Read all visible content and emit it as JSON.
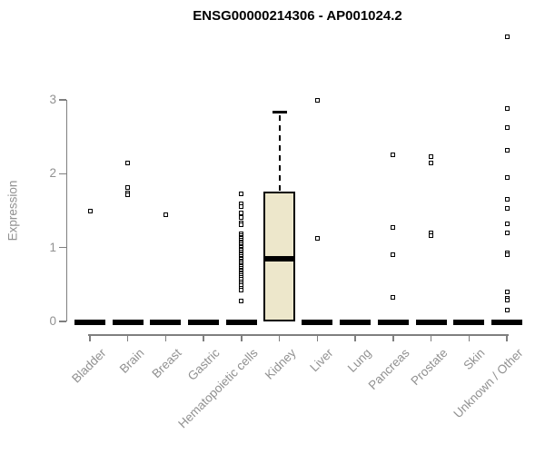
{
  "page": {
    "title": "ENSG00000214306 - AP001024.2"
  },
  "chart_data": {
    "type": "boxplot",
    "title": "ENSG00000214306 - AP001024.2",
    "ylabel": "Expression",
    "xlabel": "",
    "ylim": [
      0,
      3
    ],
    "yticks": [
      0,
      1,
      2,
      3
    ],
    "grid": false,
    "legend": false,
    "categories": [
      "Bladder",
      "Brain",
      "Breast",
      "Gastric",
      "Hematopoietic cells",
      "Kidney",
      "Liver",
      "Lung",
      "Pancreas",
      "Prostate",
      "Skin",
      "Unknown / Other"
    ],
    "boxes": [
      {
        "category": "Bladder",
        "q1": 0,
        "median": 0,
        "q3": 0,
        "whisker_low": 0,
        "whisker_high": 0,
        "outliers": [
          1.49
        ]
      },
      {
        "category": "Brain",
        "q1": 0,
        "median": 0,
        "q3": 0,
        "whisker_low": 0,
        "whisker_high": 0,
        "outliers": [
          2.15,
          1.82,
          1.74,
          1.71
        ]
      },
      {
        "category": "Breast",
        "q1": 0,
        "median": 0,
        "q3": 0,
        "whisker_low": 0,
        "whisker_high": 0,
        "outliers": [
          1.45
        ]
      },
      {
        "category": "Gastric",
        "q1": 0,
        "median": 0,
        "q3": 0,
        "whisker_low": 0,
        "whisker_high": 0,
        "outliers": []
      },
      {
        "category": "Hematopoietic cells",
        "q1": 0,
        "median": 0,
        "q3": 0,
        "whisker_low": 0,
        "whisker_high": 0,
        "outliers": [
          1.73,
          1.59,
          1.56,
          1.47,
          1.41,
          1.34,
          1.31,
          1.19,
          1.16,
          1.14,
          1.12,
          1.1,
          1.08,
          1.06,
          1.04,
          1.02,
          1.0,
          0.98,
          0.96,
          0.94,
          0.92,
          0.9,
          0.88,
          0.86,
          0.84,
          0.82,
          0.8,
          0.78,
          0.76,
          0.74,
          0.72,
          0.7,
          0.68,
          0.66,
          0.64,
          0.62,
          0.6,
          0.57,
          0.54,
          0.51,
          0.48,
          0.45,
          0.42,
          0.28
        ]
      },
      {
        "category": "Kidney",
        "q1": 0,
        "median": 0.85,
        "q3": 1.76,
        "whisker_low": 0,
        "whisker_high": 2.83,
        "outliers": []
      },
      {
        "category": "Liver",
        "q1": 0,
        "median": 0,
        "q3": 0,
        "whisker_low": 0,
        "whisker_high": 0,
        "outliers": [
          3.0,
          1.13
        ]
      },
      {
        "category": "Lung",
        "q1": 0,
        "median": 0,
        "q3": 0,
        "whisker_low": 0,
        "whisker_high": 0,
        "outliers": []
      },
      {
        "category": "Pancreas",
        "q1": 0,
        "median": 0,
        "q3": 0,
        "whisker_low": 0,
        "whisker_high": 0,
        "outliers": [
          2.26,
          1.27,
          0.91,
          0.32
        ]
      },
      {
        "category": "Prostate",
        "q1": 0,
        "median": 0,
        "q3": 0,
        "whisker_low": 0,
        "whisker_high": 0,
        "outliers": [
          2.23,
          2.15,
          1.2,
          1.16
        ]
      },
      {
        "category": "Skin",
        "q1": 0,
        "median": 0,
        "q3": 0,
        "whisker_low": 0,
        "whisker_high": 0,
        "outliers": []
      },
      {
        "category": "Unknown / Other",
        "q1": 0,
        "median": 0,
        "q3": 0,
        "whisker_low": 0,
        "whisker_high": 0,
        "outliers": [
          3.85,
          2.89,
          2.62,
          2.32,
          1.95,
          1.65,
          1.53,
          1.32,
          1.2,
          0.93,
          0.9,
          0.4,
          0.31,
          0.29,
          0.15
        ]
      }
    ],
    "colors": {
      "box_fill": "#ede7cb",
      "box_border": "#000000",
      "median": "#000000",
      "point": "#000000",
      "axis": "#7f7f7f",
      "tick_label": "#919191",
      "title": "#000000",
      "background": "#ffffff"
    }
  }
}
